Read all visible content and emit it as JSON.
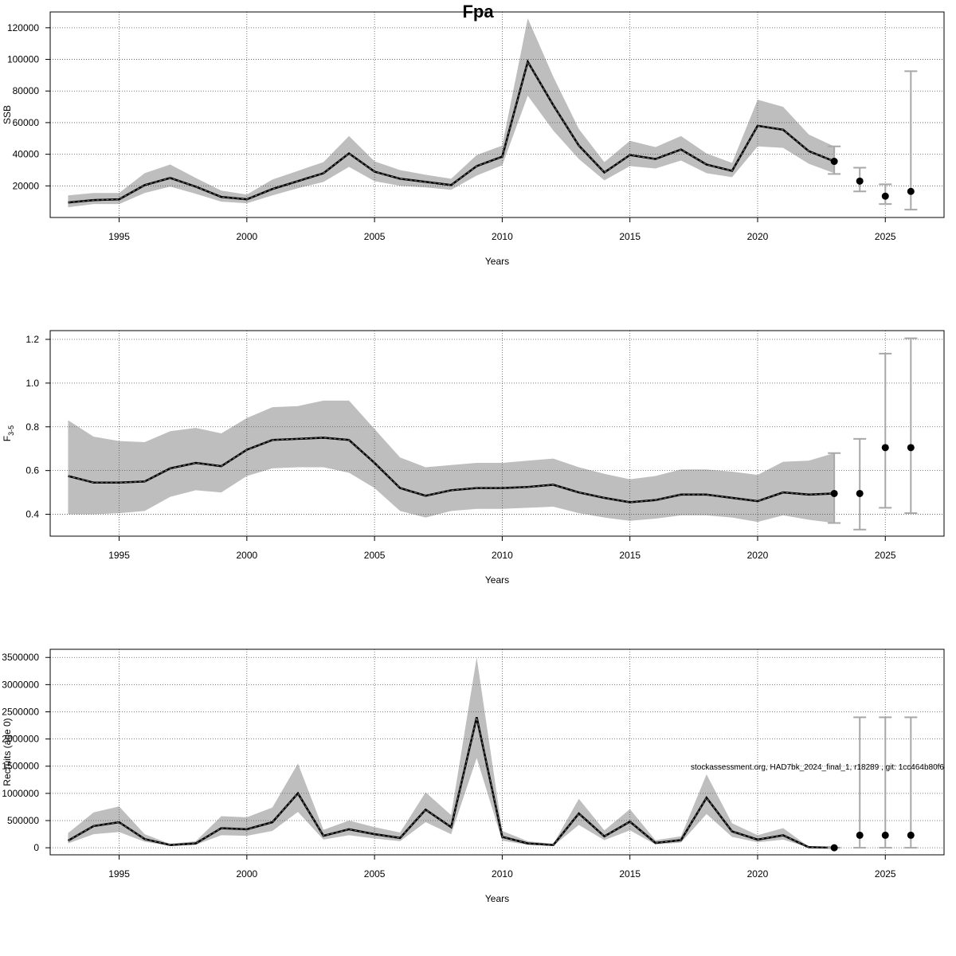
{
  "title": "Fpa",
  "credit": "stockassessment.org, HAD7bk_2024_final_1, r18289 , git: 1cc464b80f6",
  "chart_data": [
    {
      "type": "line",
      "xlabel": "Years",
      "ylabel": "SSB",
      "xlim": [
        1992.3,
        2027.3
      ],
      "ylim": [
        0,
        130000
      ],
      "xticks": [
        1995,
        2000,
        2005,
        2010,
        2015,
        2020,
        2025
      ],
      "yticks": [
        20000,
        40000,
        60000,
        80000,
        100000,
        120000
      ],
      "ytick_labels": [
        "20000",
        "40000",
        "60000",
        "80000",
        "100000",
        "120000"
      ],
      "grid": true,
      "band_color": "#bebebe",
      "years": [
        1993,
        1994,
        1995,
        1996,
        1997,
        1998,
        1999,
        2000,
        2001,
        2002,
        2003,
        2004,
        2005,
        2006,
        2007,
        2008,
        2009,
        2010,
        2011,
        2012,
        2013,
        2014,
        2015,
        2016,
        2017,
        2018,
        2019,
        2020,
        2021,
        2022,
        2023
      ],
      "estimate": [
        9500,
        11000,
        11500,
        20500,
        25000,
        19500,
        13000,
        11500,
        18000,
        23000,
        28000,
        40500,
        29000,
        24500,
        22500,
        20500,
        32500,
        38500,
        98500,
        71000,
        45500,
        28500,
        39500,
        37000,
        43000,
        33500,
        29500,
        58000,
        55500,
        42000,
        35500
      ],
      "lower": [
        6500,
        8500,
        8500,
        15500,
        19500,
        15000,
        10000,
        9000,
        14000,
        18500,
        22500,
        32000,
        23000,
        20000,
        19000,
        17500,
        26500,
        33000,
        77000,
        55000,
        37000,
        23500,
        32500,
        31000,
        36000,
        28000,
        25500,
        45000,
        44000,
        34000,
        28000
      ],
      "upper": [
        14000,
        15500,
        15500,
        28000,
        33500,
        25000,
        17000,
        14500,
        24000,
        29500,
        35000,
        51500,
        35500,
        30000,
        27000,
        24500,
        39500,
        45500,
        126000,
        89000,
        56000,
        35000,
        48500,
        44500,
        51500,
        40500,
        34500,
        74500,
        70000,
        52500,
        45000
      ],
      "forecast": {
        "years": [
          2023,
          2024,
          2025,
          2026
        ],
        "values": [
          35500,
          23000,
          13500,
          16500
        ],
        "lower": [
          27500,
          16500,
          8500,
          5000
        ],
        "upper": [
          45000,
          31500,
          21000,
          92500
        ]
      }
    },
    {
      "type": "line",
      "xlabel": "Years",
      "ylabel": "F",
      "ylabel_sub": "3-5",
      "xlim": [
        1992.3,
        2027.3
      ],
      "ylim": [
        0.3,
        1.24
      ],
      "xticks": [
        1995,
        2000,
        2005,
        2010,
        2015,
        2020,
        2025
      ],
      "yticks": [
        0.4,
        0.6,
        0.8,
        1.0,
        1.2
      ],
      "ytick_labels": [
        "0.4",
        "0.6",
        "0.8",
        "1.0",
        "1.2"
      ],
      "grid": true,
      "band_color": "#bebebe",
      "years": [
        1993,
        1994,
        1995,
        1996,
        1997,
        1998,
        1999,
        2000,
        2001,
        2002,
        2003,
        2004,
        2005,
        2006,
        2007,
        2008,
        2009,
        2010,
        2011,
        2012,
        2013,
        2014,
        2015,
        2016,
        2017,
        2018,
        2019,
        2020,
        2021,
        2022,
        2023
      ],
      "estimate": [
        0.575,
        0.545,
        0.545,
        0.55,
        0.61,
        0.635,
        0.62,
        0.695,
        0.74,
        0.745,
        0.75,
        0.74,
        0.635,
        0.52,
        0.485,
        0.51,
        0.52,
        0.52,
        0.525,
        0.535,
        0.5,
        0.475,
        0.455,
        0.465,
        0.49,
        0.49,
        0.475,
        0.46,
        0.5,
        0.49,
        0.495
      ],
      "lower": [
        0.4,
        0.4,
        0.405,
        0.415,
        0.48,
        0.51,
        0.5,
        0.575,
        0.61,
        0.615,
        0.615,
        0.59,
        0.52,
        0.415,
        0.385,
        0.415,
        0.425,
        0.425,
        0.43,
        0.435,
        0.405,
        0.385,
        0.37,
        0.38,
        0.395,
        0.395,
        0.385,
        0.365,
        0.395,
        0.375,
        0.36
      ],
      "upper": [
        0.83,
        0.755,
        0.735,
        0.73,
        0.78,
        0.795,
        0.77,
        0.84,
        0.89,
        0.895,
        0.92,
        0.92,
        0.79,
        0.66,
        0.615,
        0.625,
        0.635,
        0.635,
        0.645,
        0.655,
        0.615,
        0.585,
        0.56,
        0.575,
        0.605,
        0.605,
        0.595,
        0.58,
        0.64,
        0.645,
        0.68
      ],
      "forecast": {
        "years": [
          2023,
          2024,
          2025,
          2026
        ],
        "values": [
          0.495,
          0.495,
          0.705,
          0.705
        ],
        "lower": [
          0.36,
          0.33,
          0.43,
          0.405
        ],
        "upper": [
          0.68,
          0.745,
          1.135,
          1.205
        ]
      }
    },
    {
      "type": "line",
      "xlabel": "Years",
      "ylabel": "Recruits (age 0)",
      "xlim": [
        1992.3,
        2027.3
      ],
      "ylim": [
        -130000,
        3650000
      ],
      "xticks": [
        1995,
        2000,
        2005,
        2010,
        2015,
        2020,
        2025
      ],
      "yticks": [
        0,
        500000,
        1000000,
        1500000,
        2000000,
        2500000,
        3000000,
        3500000
      ],
      "ytick_labels": [
        "0",
        "500000",
        "1000000",
        "1500000",
        "2000000",
        "2500000",
        "3000000",
        "3500000"
      ],
      "grid": true,
      "band_color": "#bebebe",
      "years": [
        1993,
        1994,
        1995,
        1996,
        1997,
        1998,
        1999,
        2000,
        2001,
        2002,
        2003,
        2004,
        2005,
        2006,
        2007,
        2008,
        2009,
        2010,
        2011,
        2012,
        2013,
        2014,
        2015,
        2016,
        2017,
        2018,
        2019,
        2020,
        2021,
        2022,
        2023
      ],
      "estimate": [
        130000,
        400000,
        470000,
        160000,
        50000,
        80000,
        360000,
        340000,
        470000,
        1000000,
        220000,
        340000,
        250000,
        180000,
        700000,
        380000,
        2400000,
        200000,
        80000,
        50000,
        630000,
        210000,
        480000,
        90000,
        140000,
        920000,
        300000,
        150000,
        230000,
        10000,
        0
      ],
      "lower": [
        80000,
        250000,
        290000,
        110000,
        35000,
        55000,
        230000,
        220000,
        310000,
        660000,
        150000,
        230000,
        170000,
        120000,
        470000,
        250000,
        1650000,
        130000,
        55000,
        35000,
        420000,
        140000,
        320000,
        60000,
        95000,
        620000,
        200000,
        100000,
        150000,
        5000,
        0
      ],
      "upper": [
        270000,
        650000,
        760000,
        250000,
        70000,
        120000,
        580000,
        560000,
        740000,
        1550000,
        330000,
        500000,
        380000,
        280000,
        1020000,
        600000,
        3500000,
        310000,
        120000,
        70000,
        900000,
        320000,
        710000,
        140000,
        210000,
        1350000,
        450000,
        230000,
        360000,
        20000,
        0
      ],
      "forecast": {
        "years": [
          2023,
          2024,
          2025,
          2026
        ],
        "values": [
          0,
          230000,
          230000,
          230000
        ],
        "lower": [
          0,
          0,
          0,
          0
        ],
        "upper": [
          0,
          2400000,
          2400000,
          2400000
        ]
      }
    }
  ]
}
